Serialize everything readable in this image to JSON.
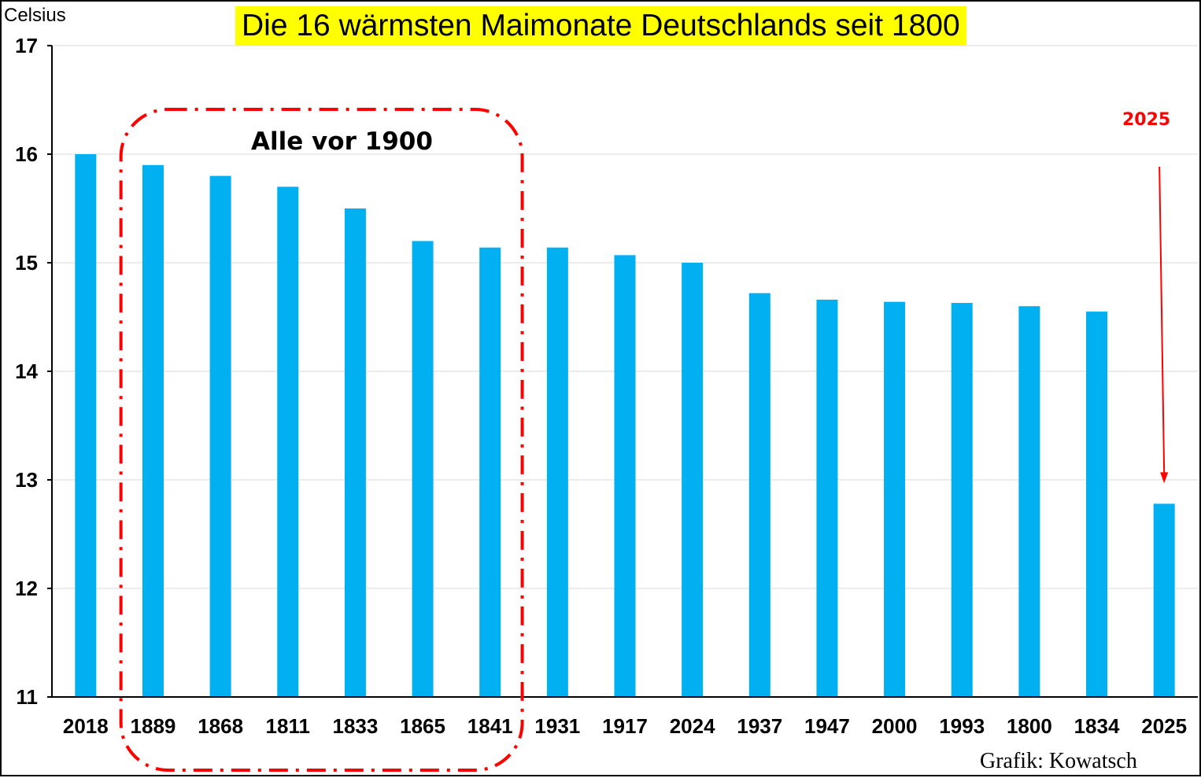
{
  "chart_data": {
    "type": "bar",
    "title": "Die 16 wärmsten Maimonate Deutschlands seit 1800",
    "ylabel": "Celsius",
    "xlabel": "",
    "categories": [
      "2018",
      "1889",
      "1868",
      "1811",
      "1833",
      "1865",
      "1841",
      "1931",
      "1917",
      "2024",
      "1937",
      "1947",
      "2000",
      "1993",
      "1800",
      "1834",
      "2025"
    ],
    "values": [
      16.0,
      15.9,
      15.8,
      15.7,
      15.5,
      15.2,
      15.14,
      15.14,
      15.07,
      15.0,
      14.72,
      14.66,
      14.64,
      14.63,
      14.6,
      14.55,
      12.78
    ],
    "ylim": [
      11,
      17
    ],
    "yticks": [
      11,
      12,
      13,
      14,
      15,
      16,
      17
    ],
    "grid": true,
    "bar_color": "#00b0f0",
    "annotations": {
      "highlight_label": "Alle vor 1900",
      "highlight_categories": [
        "1889",
        "1868",
        "1811",
        "1833",
        "1865",
        "1841"
      ],
      "highlight_color": "#ff0000",
      "arrow_label": "2025",
      "arrow_target": "2025",
      "arrow_color": "#ff0000"
    },
    "credit": "Grafik: Kowatsch"
  }
}
